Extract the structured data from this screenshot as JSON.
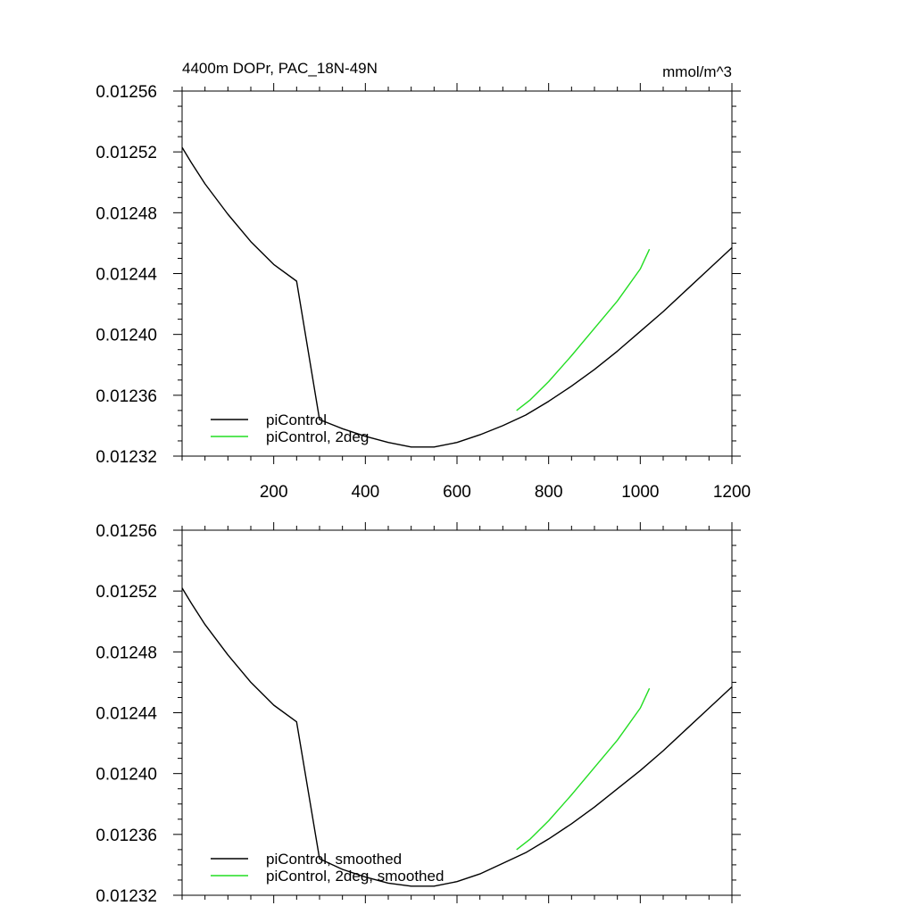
{
  "chart_data": [
    {
      "type": "line",
      "title_left": "4400m DOPr, PAC_18N-49N",
      "title_right": "mmol/m^3",
      "xlim": [
        0,
        1200
      ],
      "ylim": [
        0.01232,
        0.01256
      ],
      "x_ticks": [
        200,
        400,
        600,
        800,
        1000,
        1200
      ],
      "x_tick_labels": [
        "200",
        "400",
        "600",
        "800",
        "1000",
        "1200"
      ],
      "y_ticks": [
        0.01232,
        0.01236,
        0.0124,
        0.01244,
        0.01248,
        0.01252,
        0.01256
      ],
      "y_tick_labels": [
        "0.01232",
        "0.01236",
        "0.01240",
        "0.01244",
        "0.01248",
        "0.01252",
        "0.01256"
      ],
      "grid": false,
      "legend_position": "bottom-left",
      "series": [
        {
          "name": "piControl",
          "color": "#000000",
          "x": [
            0,
            20,
            50,
            100,
            150,
            200,
            250,
            300,
            350,
            400,
            450,
            500,
            550,
            600,
            650,
            700,
            750,
            800,
            850,
            900,
            950,
            1000,
            1050,
            1100,
            1150,
            1200
          ],
          "y": [
            0.012523,
            0.012513,
            0.012499,
            0.012479,
            0.012461,
            0.012446,
            0.012435,
            0.012344,
            0.012338,
            0.012333,
            0.012329,
            0.012326,
            0.012326,
            0.012329,
            0.012334,
            0.01234,
            0.012347,
            0.012356,
            0.012366,
            0.012377,
            0.012389,
            0.012402,
            0.012415,
            0.012429,
            0.012443,
            0.012457
          ]
        },
        {
          "name": "piControl, 2deg",
          "color": "#22dd22",
          "x": [
            730,
            760,
            800,
            850,
            900,
            950,
            1000,
            1020
          ],
          "y": [
            0.01235,
            0.012357,
            0.012369,
            0.012386,
            0.012404,
            0.012422,
            0.012443,
            0.012456
          ]
        }
      ]
    },
    {
      "type": "line",
      "xlim": [
        0,
        1200
      ],
      "ylim": [
        0.01232,
        0.01256
      ],
      "y_ticks": [
        0.01232,
        0.01236,
        0.0124,
        0.01244,
        0.01248,
        0.01252,
        0.01256
      ],
      "y_tick_labels": [
        "0.01232",
        "0.01236",
        "0.01240",
        "0.01244",
        "0.01248",
        "0.01252",
        "0.01256"
      ],
      "grid": false,
      "legend_position": "bottom-left",
      "series": [
        {
          "name": "piControl, smoothed",
          "color": "#000000",
          "x": [
            0,
            20,
            50,
            100,
            150,
            200,
            250,
            300,
            350,
            400,
            450,
            500,
            550,
            600,
            650,
            700,
            750,
            800,
            850,
            900,
            950,
            1000,
            1050,
            1100,
            1150,
            1200
          ],
          "y": [
            0.012522,
            0.012512,
            0.012498,
            0.012478,
            0.01246,
            0.012445,
            0.012434,
            0.012344,
            0.012337,
            0.012332,
            0.012328,
            0.012326,
            0.012326,
            0.012329,
            0.012334,
            0.012341,
            0.012348,
            0.012357,
            0.012367,
            0.012378,
            0.01239,
            0.012402,
            0.012415,
            0.012429,
            0.012443,
            0.012457
          ]
        },
        {
          "name": "piControl, 2deg, smoothed",
          "color": "#22dd22",
          "x": [
            730,
            760,
            800,
            850,
            900,
            950,
            1000,
            1020
          ],
          "y": [
            0.01235,
            0.012357,
            0.012369,
            0.012386,
            0.012404,
            0.012422,
            0.012443,
            0.012456
          ]
        }
      ]
    }
  ]
}
